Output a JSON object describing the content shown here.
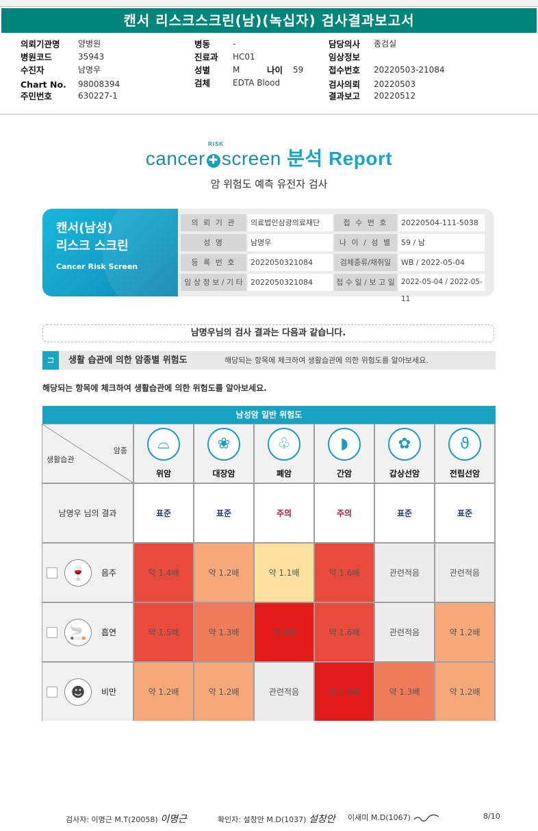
{
  "report_title": "캔서 리스크스크린(남)(녹십자) 검사결과보고서",
  "header": {
    "institution_label": "의뢰기관명",
    "institution": "양병원",
    "hospital_code_label": "병원코드",
    "hospital_code": "35943",
    "patient_label": "수진자",
    "patient": "남명우",
    "chart_label": "Chart No.",
    "chart_no": "98008394",
    "id_label": "주민번호",
    "id_no": "630227-1",
    "ward_label": "병동",
    "ward": "-",
    "dept_label": "진료과",
    "dept": "HC01",
    "sex_label": "성별",
    "sex": "M",
    "age_label": "나이",
    "age": "59",
    "specimen_label": "검체",
    "specimen": "EDTA Blood",
    "doctor_label": "담당의사",
    "doctor": "종검실",
    "clinical_label": "임상정보",
    "clinical": "",
    "receipt_label": "접수번호",
    "receipt_no": "20220503-21084",
    "request_label": "검사의뢰",
    "request_date": "20220503",
    "report_label": "결과보고",
    "report_date": "20220512"
  },
  "brand": {
    "cancer": "cancer",
    "risk": "RISK",
    "screen": "screen",
    "analysis": "분석",
    "report": "Report",
    "subtitle": "암 위험도 예측 유전자 검사"
  },
  "info_card": {
    "title_line1": "캔서(남성)",
    "title_line2": "리스크 스크린",
    "title_en": "Cancer Risk Screen",
    "rows": [
      {
        "l1": "의 뢰 기 관",
        "v1": "의료법인삼광의료재단",
        "l2": "접 수 번 호",
        "v2": "20220504-111-5038"
      },
      {
        "l1": "성 명",
        "v1": "남명우",
        "l2": "나 이 / 성 별",
        "v2": "59 / 남"
      },
      {
        "l1": "등 록 번 호",
        "v1": "2022050321084",
        "l2": "검체종류/채취일",
        "v2": "WB / 2022-05-04"
      },
      {
        "l1": "임 상 정 보 / 기 타",
        "v1": "2022050321084",
        "l2": "접 수 일 / 보 고 일",
        "v2": "2022-05-04 / 2022-05-11"
      }
    ]
  },
  "result_intro": "남명우님의 검사 결과는 다음과 같습니다.",
  "section": {
    "title": "생활 습관에 의한 암종별 위험도",
    "desc": "해당되는 항목에 체크하여 생활습관에 의한 위험도를 알아보세요.",
    "instruction": "해당되는 항목에 체크하여 생활습관에 의한 위험도를 알아보세요."
  },
  "table": {
    "header": "남성암 일반 위험도",
    "corner_cancer": "암종",
    "corner_habit": "생활습관",
    "result_label": "남명우 님의 결과",
    "cancers": [
      {
        "name": "위암",
        "icon": "stomach-icon",
        "glyph": "⌓",
        "result": "표준",
        "result_color": "#1f3a6e"
      },
      {
        "name": "대장암",
        "icon": "colon-icon",
        "glyph": "❀",
        "result": "표준",
        "result_color": "#1f3a6e"
      },
      {
        "name": "폐암",
        "icon": "lung-icon",
        "glyph": "♧",
        "result": "주의",
        "result_color": "#b3123c"
      },
      {
        "name": "간암",
        "icon": "liver-icon",
        "glyph": "◗",
        "result": "주의",
        "result_color": "#b3123c"
      },
      {
        "name": "갑상선암",
        "icon": "thyroid-icon",
        "glyph": "✿",
        "result": "표준",
        "result_color": "#1f3a6e"
      },
      {
        "name": "전립선암",
        "icon": "prostate-icon",
        "glyph": "ϑ",
        "result": "표준",
        "result_color": "#1f3a6e"
      }
    ],
    "habits": [
      {
        "name": "음주",
        "icon": "alcohol-icon",
        "glyph": "🍷",
        "cells": [
          {
            "text": "약 1.4배",
            "color": "#e84b3c"
          },
          {
            "text": "약 1.2배",
            "color": "#f5a97a"
          },
          {
            "text": "약 1.1배",
            "color": "#fde09d"
          },
          {
            "text": "약 1.6배",
            "color": "#e84b3c"
          },
          {
            "text": "관련적음",
            "color": "#ececec"
          },
          {
            "text": "관련적음",
            "color": "#ececec"
          }
        ]
      },
      {
        "name": "흡연",
        "icon": "smoking-icon",
        "glyph": "🚬",
        "cells": [
          {
            "text": "약 1.5배",
            "color": "#e84b3c"
          },
          {
            "text": "약 1.3배",
            "color": "#f07b5a"
          },
          {
            "text": "약 9배",
            "color": "#e31b1b"
          },
          {
            "text": "약 1.6배",
            "color": "#e84b3c"
          },
          {
            "text": "관련적음",
            "color": "#ececec"
          },
          {
            "text": "약 1.2배",
            "color": "#f5a97a"
          }
        ]
      },
      {
        "name": "비만",
        "icon": "obesity-icon",
        "glyph": "☻",
        "cells": [
          {
            "text": "약 1.2배",
            "color": "#f5a97a"
          },
          {
            "text": "약 1.2배",
            "color": "#f5a97a"
          },
          {
            "text": "관련적음",
            "color": "#ececec"
          },
          {
            "text": "약 1.8배",
            "color": "#e31b1b"
          },
          {
            "text": "약 1.3배",
            "color": "#f07b5a"
          },
          {
            "text": "약 1.2배",
            "color": "#f5a97a"
          }
        ]
      }
    ]
  },
  "footer": {
    "examiner": "검사자: 이명근 M.T(20058)",
    "examiner_sign": "이명근",
    "confirmer": "확인자: 설창안 M.D(1037)",
    "confirmer_sign": "설창안",
    "doctor2": "이새미 M.D(1067)",
    "page": "8/10"
  }
}
